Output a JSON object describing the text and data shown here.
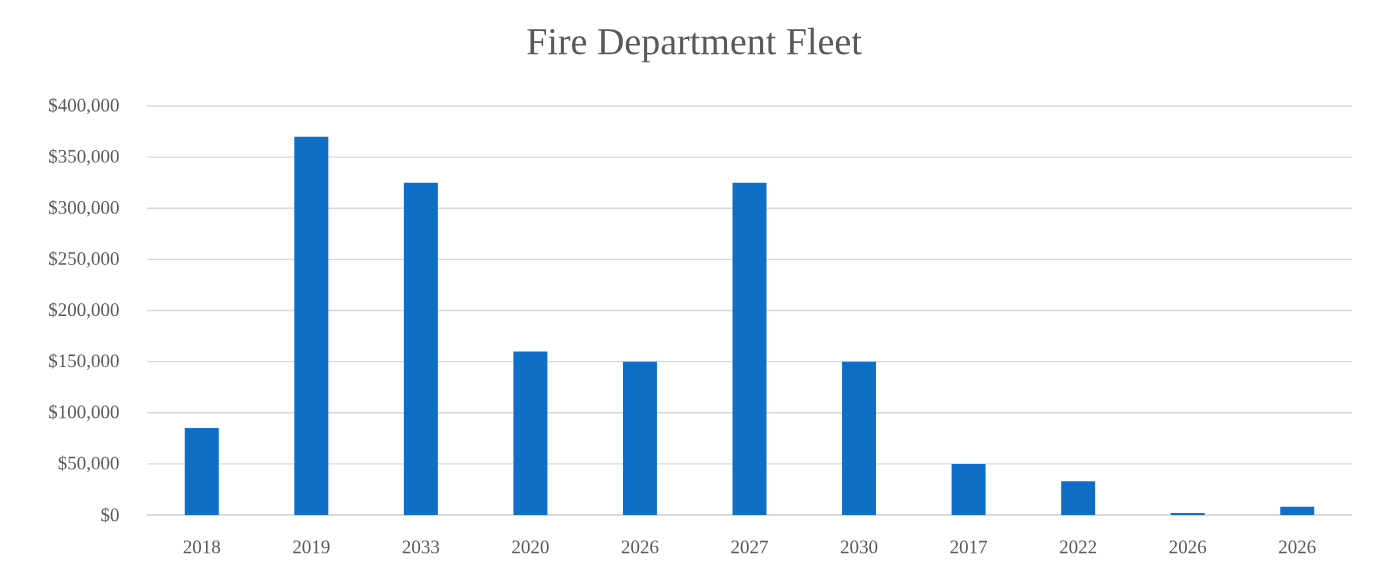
{
  "chart_data": {
    "type": "bar",
    "title": "Fire Department Fleet",
    "categories": [
      "2018",
      "2019",
      "2033",
      "2020",
      "2026",
      "2027",
      "2030",
      "2017",
      "2022",
      "2026",
      "2026"
    ],
    "values": [
      85000,
      370000,
      325000,
      160000,
      150000,
      325000,
      150000,
      50000,
      33000,
      2000,
      8000
    ],
    "color": "#0f6fc6",
    "ylim": [
      0,
      400000
    ],
    "yticks": [
      {
        "value": 0,
        "label": "$0"
      },
      {
        "value": 50000,
        "label": "$50,000"
      },
      {
        "value": 100000,
        "label": "$100,000"
      },
      {
        "value": 150000,
        "label": "$150,000"
      },
      {
        "value": 200000,
        "label": "$200,000"
      },
      {
        "value": 250000,
        "label": "$250,000"
      },
      {
        "value": 300000,
        "label": "$300,000"
      },
      {
        "value": 350000,
        "label": "$350,000"
      },
      {
        "value": 400000,
        "label": "$400,000"
      }
    ],
    "grid": "y"
  }
}
